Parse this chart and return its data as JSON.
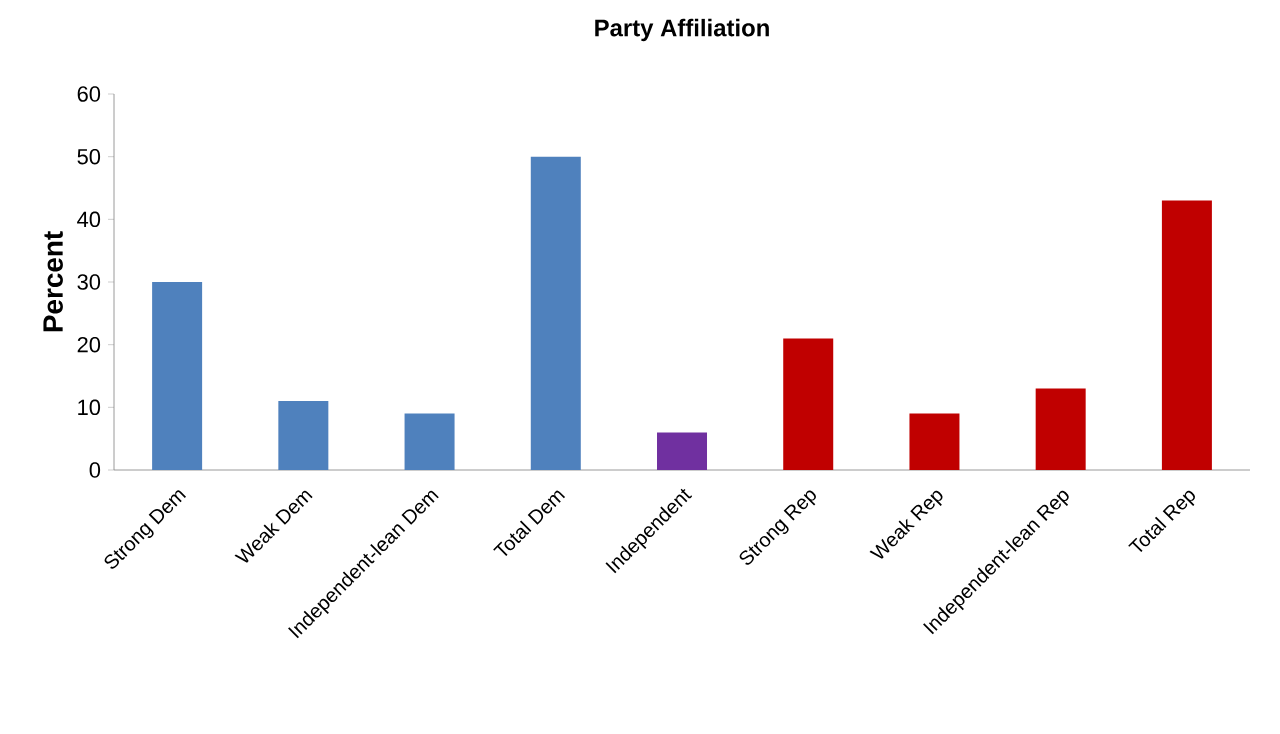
{
  "chart_data": {
    "type": "bar",
    "title": "Party Affiliation",
    "ylabel": "Percent",
    "categories": [
      "Strong Dem",
      "Weak Dem",
      "Independent-lean Dem",
      "Total Dem",
      "Independent",
      "Strong Rep",
      "Weak Rep",
      "Independent-lean Rep",
      "Total Rep"
    ],
    "values": [
      30,
      11,
      9,
      50,
      6,
      21,
      9,
      13,
      43
    ],
    "colors": [
      "#4f81bd",
      "#4f81bd",
      "#4f81bd",
      "#4f81bd",
      "#7030a0",
      "#c00000",
      "#c00000",
      "#c00000",
      "#c00000"
    ],
    "ylim": [
      0,
      60
    ],
    "yticks": [
      0,
      10,
      20,
      30,
      40,
      50,
      60
    ],
    "grid": false
  }
}
